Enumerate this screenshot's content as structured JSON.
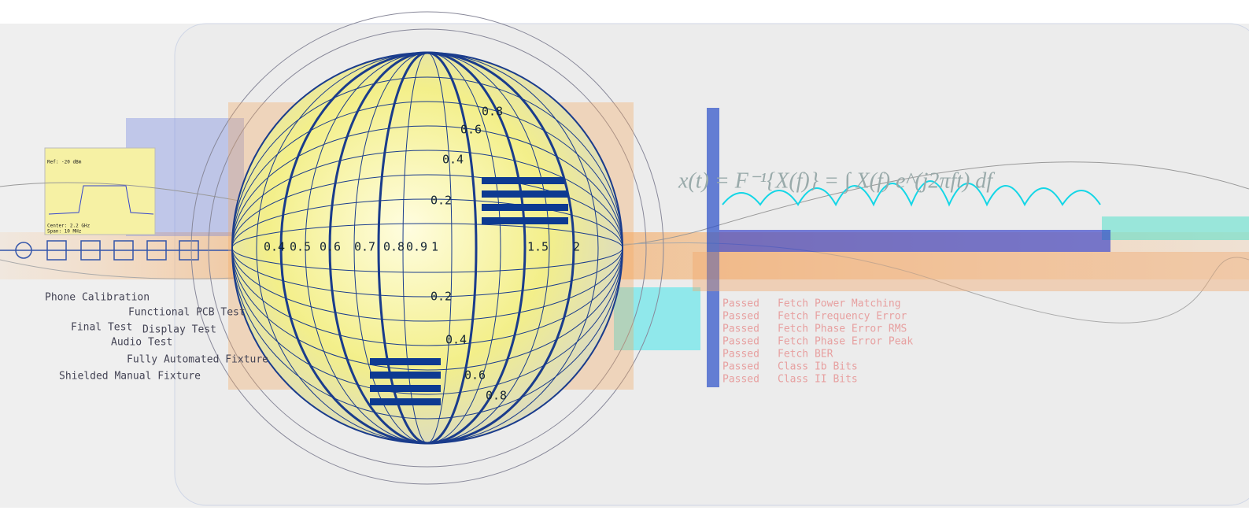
{
  "header": {
    "formula": "x(t) = F⁻¹{X(f)} = ∫ X(f) e^(j2πft) df"
  },
  "stations": [
    "Phone Calibration",
    "Functional PCB Test",
    "Final Test",
    "Display Test",
    "Audio Test",
    "Fully Automated Fixture",
    "Shielded Manual Fixture"
  ],
  "smith": {
    "axis_labels": [
      "0.4",
      "0.5",
      "0.6",
      "0.7",
      "0.8",
      "0.9",
      "1",
      "1.5",
      "2"
    ],
    "arc_labels": [
      "0.8",
      "0.6",
      "0.4",
      "0.2",
      "0.2",
      "0.4",
      "0.6",
      "0.8"
    ]
  },
  "analyzer": {
    "lines": [
      "Ref: -20 dBm",
      "Center: 2.2 GHz",
      "Span: 10 MHz"
    ]
  },
  "results": [
    {
      "status": "Passed",
      "test": "Fetch Power Matching"
    },
    {
      "status": "Passed",
      "test": "Fetch Frequency Error"
    },
    {
      "status": "Passed",
      "test": "Fetch Phase Error RMS"
    },
    {
      "status": "Passed",
      "test": "Fetch Phase Error Peak"
    },
    {
      "status": "Passed",
      "test": "Fetch BER"
    },
    {
      "status": "Passed",
      "test": "Class Ib Bits"
    },
    {
      "status": "Passed",
      "test": "Class II Bits"
    }
  ]
}
